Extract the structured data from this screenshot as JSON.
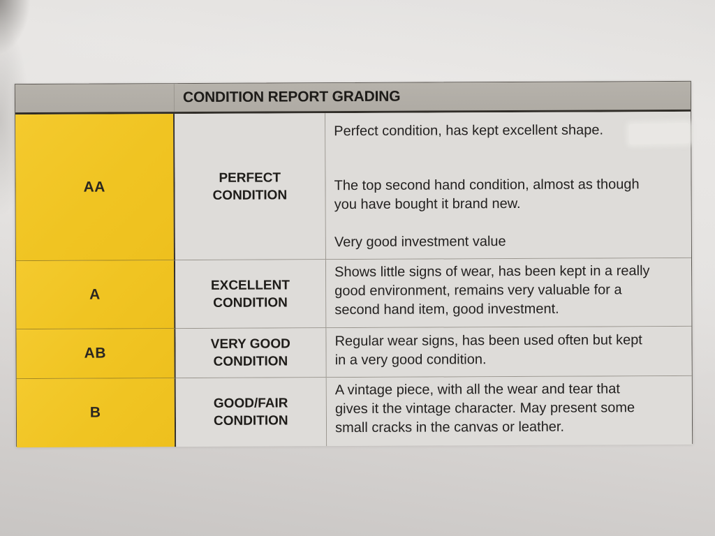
{
  "document": {
    "header": {
      "title": "CONDITION REPORT GRADING"
    },
    "grades": [
      {
        "grade": "AA",
        "condition": "PERFECT CONDITION",
        "descriptions": [
          "Perfect condition, has kept excellent shape.",
          "The top second hand condition, almost as though you have bought it brand new.",
          "Very good investment value"
        ]
      },
      {
        "grade": "A",
        "condition": "EXCELLENT CONDITION",
        "descriptions": [
          "Shows little signs of wear, has been kept in a really good environment, remains very valuable for a second hand item, good investment."
        ]
      },
      {
        "grade": "AB",
        "condition": "VERY GOOD CONDITION",
        "descriptions": [
          "Regular wear signs, has been used often but kept in a very good condition."
        ]
      },
      {
        "grade": "B",
        "condition": "GOOD/FAIR CONDITION",
        "descriptions": [
          "A vintage piece, with all the wear and tear that gives it the vintage character. May present some small cracks in the canvas or leather."
        ]
      }
    ],
    "colors": {
      "grade_column": "#f0c422",
      "header_bar": "#b2aea7",
      "cell_background": "#dedcd9",
      "paper": "#dcd9d7",
      "text": "#232120",
      "border_dark": "#302d28"
    }
  }
}
